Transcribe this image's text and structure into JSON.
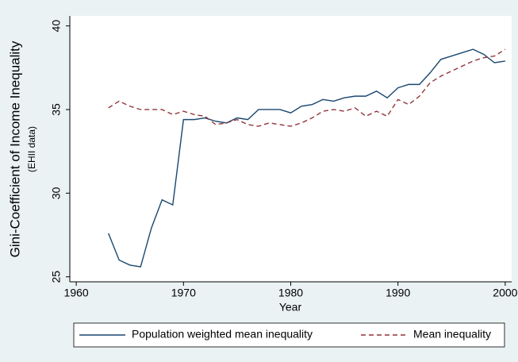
{
  "chart_data": {
    "type": "line",
    "y_label": "Gini-Coefficient of Income Inequality",
    "y_sublabel": "(EHII data)",
    "x_label": "Year",
    "x": [
      1963,
      1964,
      1965,
      1966,
      1967,
      1968,
      1969,
      1970,
      1971,
      1972,
      1973,
      1974,
      1975,
      1976,
      1977,
      1978,
      1979,
      1980,
      1981,
      1982,
      1983,
      1984,
      1985,
      1986,
      1987,
      1988,
      1989,
      1990,
      1991,
      1992,
      1993,
      1994,
      1995,
      1996,
      1997,
      1998,
      1999,
      2000
    ],
    "series": [
      {
        "name": "Population weighted mean inequality",
        "color": "#1a476f",
        "dash": "none",
        "values": [
          27.6,
          26.0,
          25.7,
          25.6,
          27.9,
          29.6,
          29.3,
          34.4,
          34.4,
          34.5,
          34.3,
          34.2,
          34.5,
          34.4,
          35.0,
          35.0,
          35.0,
          34.8,
          35.2,
          35.3,
          35.6,
          35.5,
          35.7,
          35.8,
          35.8,
          36.1,
          35.7,
          36.3,
          36.5,
          36.5,
          37.2,
          38.0,
          38.2,
          38.4,
          38.6,
          38.3,
          37.8,
          37.9
        ]
      },
      {
        "name": "Mean inequality",
        "color": "#90353b",
        "dash": "6 4",
        "values": [
          35.1,
          35.5,
          35.2,
          35.0,
          35.0,
          35.0,
          34.7,
          34.9,
          34.7,
          34.6,
          34.1,
          34.2,
          34.4,
          34.1,
          34.0,
          34.2,
          34.1,
          34.0,
          34.2,
          34.5,
          34.9,
          35.0,
          34.9,
          35.1,
          34.6,
          34.9,
          34.6,
          35.6,
          35.3,
          35.8,
          36.6,
          37.0,
          37.3,
          37.6,
          37.9,
          38.1,
          38.2,
          38.6
        ]
      }
    ],
    "xlim": [
      1959.4,
      2000.6
    ],
    "xticks": [
      1960,
      1970,
      1980,
      1990,
      2000
    ],
    "ylim": [
      24.7,
      40.6
    ],
    "yticks": [
      25,
      30,
      35,
      40
    ],
    "legend": "bottom"
  }
}
